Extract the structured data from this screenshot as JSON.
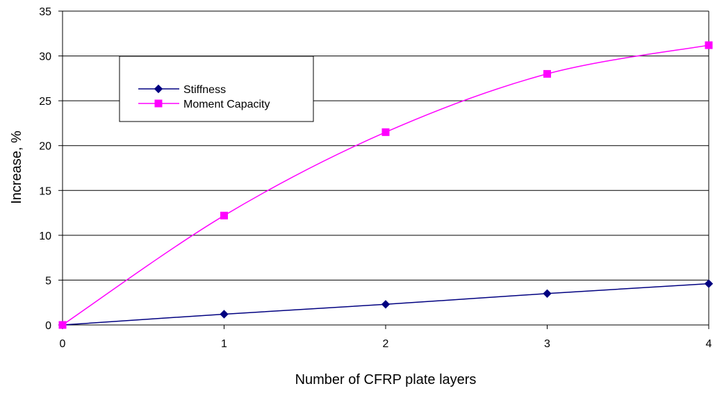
{
  "chart_data": {
    "type": "line",
    "xlabel": "Number of CFRP plate layers",
    "ylabel": "Increase, %",
    "xlim": [
      0,
      4
    ],
    "ylim": [
      0,
      35
    ],
    "x_ticks": [
      "0",
      "1",
      "2",
      "3",
      "4"
    ],
    "y_ticks": [
      "0",
      "5",
      "10",
      "15",
      "20",
      "25",
      "30",
      "35"
    ],
    "grid": "horizontal",
    "legend_position": "top-left",
    "x": [
      0,
      1,
      2,
      3,
      4
    ],
    "series": [
      {
        "name": "Stiffness",
        "values": [
          0,
          1.2,
          2.3,
          3.5,
          4.6
        ],
        "color": "#000080",
        "marker": "diamond"
      },
      {
        "name": "Moment Capacity",
        "values": [
          0,
          12.2,
          21.5,
          28.0,
          31.2
        ],
        "color": "#FF00FF",
        "marker": "square"
      }
    ]
  }
}
